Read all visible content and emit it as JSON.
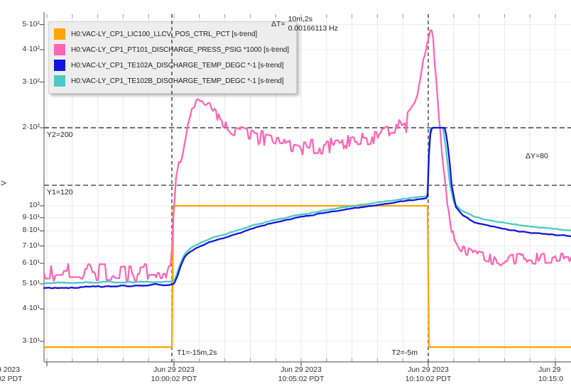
{
  "colors": {
    "orange": "#FFA408",
    "pink": "#FF66B3",
    "blue": "#1414DC",
    "cyan": "#4CC9C4",
    "grid": "#E8E8E8",
    "axis": "#6E6E6E",
    "text": "#222222",
    "cursor": "#4A4A4A",
    "yline": "#1A1A1A",
    "legend_bg": "#EDEDED",
    "legend_border": "#CFCFCF"
  },
  "legend": {
    "items": [
      {
        "label": "H0:VAC-LY_CP1_LIC100_LLCV_POS_CTRL_PCT [s-trend]",
        "color": "#FFA408"
      },
      {
        "label": "H0:VAC-LY_CP1_PT101_DISCHARGE_PRESS_PSIG *1000 [s-trend]",
        "color": "#FF66B3"
      },
      {
        "label": "H0:VAC-LY_CP1_TE102A_DISCHARGE_TEMP_DEGC *-1 [s-trend]",
        "color": "#1414DC"
      },
      {
        "label": "H0:VAC-LY_CP1_TE102B_DISCHARGE_TEMP_DEGC *-1 [s-trend]",
        "color": "#4CC9C4"
      }
    ]
  },
  "annotations": {
    "delta_t_prefix": "ΔT=",
    "delta_t_duration": "10m,2s",
    "delta_t_freq": "0.00166113 Hz",
    "y2_label": "Y2=200",
    "y1_label": "Y1=120",
    "delta_y_label": "ΔY=80",
    "t1_label": "T1=-15m,2s",
    "t2_label": "T2=-5m",
    "y_axis_label": "V"
  },
  "x_axis": {
    "labels": [
      {
        "t": 0,
        "line1": "Jun 29 2023",
        "line2": "10:00:02 PDT"
      },
      {
        "t": 5,
        "line1": "Jun 29 2023",
        "line2": "10:05:02 PDT"
      },
      {
        "t": 10,
        "line1": "Jun 29 2023",
        "line2": "10:10:02 PDT"
      }
    ],
    "left_partial": {
      "line1": "9 2023",
      "line2": "02 PDT"
    },
    "right_partial": {
      "line1": "Jun 29",
      "line2": "10:15:0"
    }
  },
  "chart_data": {
    "type": "line",
    "y_scale": "log",
    "ylabel": "V",
    "ylim": [
      27,
      560
    ],
    "grid": true,
    "legend_position": "top-left",
    "x_unit": "minutes relative to 10:00:02 PDT tick",
    "x_range_min": [
      -5.11,
      15.62
    ],
    "y_ticks": [
      {
        "v": 500,
        "label": "5·10²"
      },
      {
        "v": 400,
        "label": "4·10²"
      },
      {
        "v": 300,
        "label": "3·10²"
      },
      {
        "v": 200,
        "label": "2·10²"
      },
      {
        "v": 100,
        "label": "10²"
      },
      {
        "v": 90,
        "label": "9·10¹"
      },
      {
        "v": 80,
        "label": "8·10¹"
      },
      {
        "v": 70,
        "label": "7·10¹"
      },
      {
        "v": 60,
        "label": "6·10¹"
      },
      {
        "v": 50,
        "label": "5·10¹"
      },
      {
        "v": 40,
        "label": "4·10¹"
      },
      {
        "v": 30,
        "label": "3·10¹"
      }
    ],
    "cursors": {
      "t1_min": -0.084,
      "t2_min": 10.0,
      "y1": 120,
      "y2": 200,
      "delta_t": "10m,2s",
      "delta_y": 80
    },
    "series": [
      {
        "name": "H0:VAC-LY_CP1_LIC100_LLCV_POS_CTRL_PCT [s-trend]",
        "color": "#FFA408",
        "noise_style": "none",
        "noise": [],
        "points": [
          [
            -5.2,
            28.5
          ],
          [
            -0.07,
            28.5
          ],
          [
            -0.069,
            100
          ],
          [
            9.999,
            100
          ],
          [
            10.0,
            28.5
          ],
          [
            15.7,
            28.5
          ]
        ]
      },
      {
        "name": "H0:VAC-LY_CP1_PT101_DISCHARGE_PRESS_PSIG *1000 [s-trend]",
        "color": "#FF66B3",
        "noise_style": "spiky",
        "noise": [
          [
            -6,
            -0.1,
            4.5
          ],
          [
            -0.1,
            0.35,
            2
          ],
          [
            0.35,
            1.4,
            5
          ],
          [
            1.4,
            8.6,
            12
          ],
          [
            8.6,
            9.55,
            18
          ],
          [
            9.55,
            10.45,
            6
          ],
          [
            10.45,
            11.2,
            3
          ],
          [
            11.2,
            16,
            3.2
          ]
        ],
        "points": [
          [
            -5.2,
            55
          ],
          [
            -0.12,
            56
          ],
          [
            -0.02,
            90
          ],
          [
            0.08,
            130
          ],
          [
            0.2,
            150
          ],
          [
            0.28,
            148
          ],
          [
            0.45,
            185
          ],
          [
            0.6,
            215
          ],
          [
            0.75,
            240
          ],
          [
            0.95,
            258
          ],
          [
            1.1,
            252
          ],
          [
            1.35,
            248
          ],
          [
            1.6,
            228
          ],
          [
            1.9,
            212
          ],
          [
            2.3,
            198
          ],
          [
            2.9,
            188
          ],
          [
            3.8,
            180
          ],
          [
            4.6,
            172
          ],
          [
            5.3,
            168
          ],
          [
            6.1,
            170
          ],
          [
            6.9,
            175
          ],
          [
            7.6,
            182
          ],
          [
            8.2,
            188
          ],
          [
            8.7,
            196
          ],
          [
            9.2,
            212
          ],
          [
            9.5,
            235
          ],
          [
            9.65,
            290
          ],
          [
            9.8,
            360
          ],
          [
            9.95,
            420
          ],
          [
            10.1,
            478
          ],
          [
            10.17,
            470
          ],
          [
            10.25,
            360
          ],
          [
            10.4,
            230
          ],
          [
            10.55,
            150
          ],
          [
            10.75,
            100
          ],
          [
            10.95,
            78
          ],
          [
            11.3,
            68
          ],
          [
            11.8,
            64
          ],
          [
            12.8,
            61
          ],
          [
            13.8,
            63
          ],
          [
            14.8,
            62
          ],
          [
            15.7,
            63
          ]
        ]
      },
      {
        "name": "H0:VAC-LY_CP1_TE102B_DISCHARGE_TEMP_DEGC *-1 [s-trend]",
        "color": "#4CC9C4",
        "noise_style": "smooth",
        "noise": [
          [
            -6,
            9.9,
            0.4
          ],
          [
            10.7,
            16,
            0.4
          ]
        ],
        "points": [
          [
            -5.2,
            50.5
          ],
          [
            -0.5,
            51
          ],
          [
            0.0,
            51.5
          ],
          [
            0.12,
            55
          ],
          [
            0.25,
            60
          ],
          [
            0.4,
            65
          ],
          [
            0.55,
            67.5
          ],
          [
            0.8,
            70
          ],
          [
            1.1,
            72.5
          ],
          [
            1.6,
            75.5
          ],
          [
            2.1,
            78
          ],
          [
            2.7,
            81.5
          ],
          [
            3.3,
            85
          ],
          [
            3.9,
            88
          ],
          [
            4.6,
            91
          ],
          [
            5.4,
            94
          ],
          [
            6.2,
            97
          ],
          [
            7.0,
            99.5
          ],
          [
            7.9,
            102.5
          ],
          [
            8.8,
            105.5
          ],
          [
            9.5,
            107.5
          ],
          [
            9.97,
            109
          ],
          [
            10.03,
            165
          ],
          [
            10.08,
            199
          ],
          [
            10.15,
            200
          ],
          [
            10.58,
            200
          ],
          [
            10.7,
            165
          ],
          [
            10.84,
            122
          ],
          [
            11.0,
            103
          ],
          [
            11.3,
            96
          ],
          [
            11.8,
            91
          ],
          [
            12.4,
            88
          ],
          [
            13.1,
            85.5
          ],
          [
            13.9,
            83.5
          ],
          [
            14.8,
            81.5
          ],
          [
            15.7,
            80
          ]
        ]
      },
      {
        "name": "H0:VAC-LY_CP1_TE102A_DISCHARGE_TEMP_DEGC *-1 [s-trend]",
        "color": "#1414DC",
        "noise_style": "smooth",
        "noise": [
          [
            -6,
            9.9,
            0.4
          ],
          [
            10.7,
            16,
            0.4
          ]
        ],
        "points": [
          [
            -5.2,
            48
          ],
          [
            -0.5,
            49.5
          ],
          [
            0.0,
            50
          ],
          [
            0.12,
            53
          ],
          [
            0.25,
            58
          ],
          [
            0.4,
            63
          ],
          [
            0.55,
            65.5
          ],
          [
            0.8,
            68
          ],
          [
            1.1,
            70.5
          ],
          [
            1.6,
            73.5
          ],
          [
            2.1,
            76
          ],
          [
            2.7,
            79.5
          ],
          [
            3.3,
            83
          ],
          [
            3.9,
            86
          ],
          [
            4.6,
            89
          ],
          [
            5.4,
            92
          ],
          [
            6.2,
            95
          ],
          [
            7.0,
            97.5
          ],
          [
            7.9,
            100.5
          ],
          [
            8.8,
            103.5
          ],
          [
            9.5,
            105.5
          ],
          [
            9.97,
            107
          ],
          [
            10.03,
            160
          ],
          [
            10.1,
            198
          ],
          [
            10.18,
            200
          ],
          [
            10.66,
            200
          ],
          [
            10.78,
            168
          ],
          [
            10.92,
            120
          ],
          [
            11.08,
            99
          ],
          [
            11.35,
            92
          ],
          [
            11.8,
            86.5
          ],
          [
            12.4,
            83.5
          ],
          [
            13.1,
            81
          ],
          [
            13.9,
            79
          ],
          [
            14.8,
            77.5
          ],
          [
            15.7,
            76
          ]
        ]
      }
    ]
  }
}
